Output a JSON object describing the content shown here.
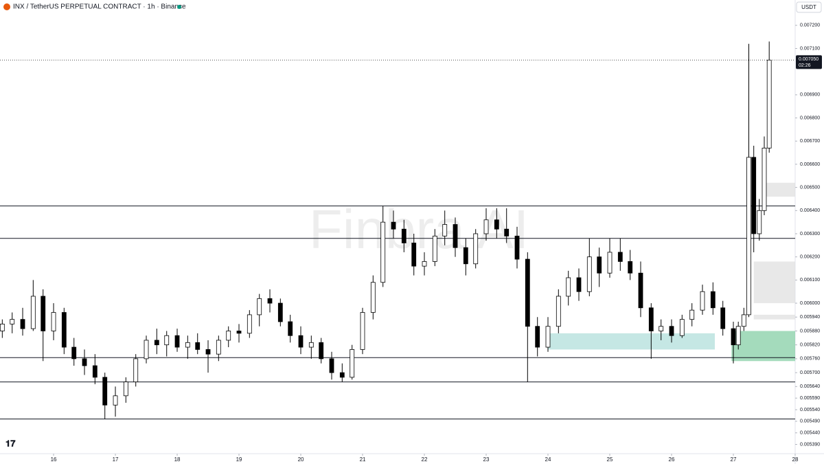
{
  "chart_data": {
    "type": "candlestick",
    "title": "INX / TetherUS PERPETUAL CONTRACT · 1h · Binance",
    "currency": "USDT",
    "watermark": "Finbra AI",
    "up_color": "#ffffff",
    "down_color": "#000000",
    "x": [
      15.17,
      15.33,
      15.5,
      15.67,
      15.83,
      16.0,
      16.17,
      16.33,
      16.5,
      16.67,
      16.83,
      17.0,
      17.17,
      17.33,
      17.5,
      17.67,
      17.83,
      18.0,
      18.17,
      18.33,
      18.5,
      18.67,
      18.83,
      19.0,
      19.17,
      19.33,
      19.5,
      19.67,
      19.83,
      20.0,
      20.17,
      20.33,
      20.5,
      20.67,
      20.83,
      21.0,
      21.17,
      21.33,
      21.5,
      21.67,
      21.83,
      22.0,
      22.17,
      22.33,
      22.5,
      22.67,
      22.83,
      23.0,
      23.17,
      23.33,
      23.5,
      23.67,
      23.83,
      24.0,
      24.17,
      24.33,
      24.5,
      24.67,
      24.83,
      25.0,
      25.17,
      25.33,
      25.5,
      25.67,
      25.83,
      26.0,
      26.17,
      26.33,
      26.5,
      26.67,
      26.83,
      27.0,
      27.08,
      27.17,
      27.25,
      27.33,
      27.42,
      27.5,
      27.58
    ],
    "open": [
      0.00588,
      0.00591,
      0.00593,
      0.00589,
      0.00603,
      0.00588,
      0.00596,
      0.00581,
      0.00576,
      0.00573,
      0.00568,
      0.00556,
      0.0056,
      0.00566,
      0.00576,
      0.00584,
      0.00582,
      0.00586,
      0.00581,
      0.00583,
      0.0058,
      0.00578,
      0.00584,
      0.00588,
      0.00587,
      0.00595,
      0.00602,
      0.006,
      0.00592,
      0.00586,
      0.00581,
      0.00583,
      0.00576,
      0.0057,
      0.00568,
      0.0058,
      0.00596,
      0.00609,
      0.00635,
      0.00632,
      0.00626,
      0.00616,
      0.00618,
      0.00629,
      0.00634,
      0.00624,
      0.00617,
      0.0063,
      0.00636,
      0.00632,
      0.00629,
      0.00619,
      0.0059,
      0.00581,
      0.0059,
      0.00603,
      0.00611,
      0.00605,
      0.0062,
      0.00613,
      0.00622,
      0.00618,
      0.00613,
      0.00598,
      0.00588,
      0.0059,
      0.00586,
      0.00593,
      0.00597,
      0.00605,
      0.00598,
      0.00589,
      0.00582,
      0.0059,
      0.00595,
      0.00663,
      0.0063,
      0.0064,
      0.00667
    ],
    "high": [
      0.00593,
      0.00596,
      0.00598,
      0.0061,
      0.00606,
      0.006,
      0.00598,
      0.00585,
      0.0058,
      0.00578,
      0.0057,
      0.00564,
      0.00568,
      0.00578,
      0.00586,
      0.00589,
      0.00588,
      0.00589,
      0.00586,
      0.00587,
      0.00584,
      0.00586,
      0.0059,
      0.00591,
      0.00597,
      0.00604,
      0.00606,
      0.00602,
      0.00595,
      0.0059,
      0.00586,
      0.00585,
      0.00579,
      0.00574,
      0.00582,
      0.00598,
      0.00612,
      0.00642,
      0.0064,
      0.00636,
      0.0063,
      0.00622,
      0.00632,
      0.0064,
      0.00637,
      0.00628,
      0.00632,
      0.00641,
      0.00641,
      0.00641,
      0.00633,
      0.00622,
      0.00594,
      0.00594,
      0.00606,
      0.00614,
      0.00615,
      0.00628,
      0.00624,
      0.00628,
      0.00628,
      0.00623,
      0.00618,
      0.006,
      0.00593,
      0.00593,
      0.00595,
      0.006,
      0.00608,
      0.00609,
      0.00601,
      0.00592,
      0.00592,
      0.00598,
      0.00712,
      0.00668,
      0.00645,
      0.00672,
      0.00713
    ],
    "low": [
      0.00585,
      0.00587,
      0.00586,
      0.00588,
      0.00575,
      0.00584,
      0.00578,
      0.00573,
      0.00569,
      0.00565,
      0.0055,
      0.00551,
      0.00557,
      0.00564,
      0.00574,
      0.00578,
      0.00577,
      0.00579,
      0.00576,
      0.00578,
      0.0057,
      0.00575,
      0.00581,
      0.00583,
      0.00585,
      0.0059,
      0.00596,
      0.0059,
      0.00583,
      0.00578,
      0.00576,
      0.00574,
      0.00567,
      0.00566,
      0.00567,
      0.00578,
      0.00593,
      0.00607,
      0.00628,
      0.00622,
      0.00612,
      0.00612,
      0.00616,
      0.00625,
      0.0062,
      0.00612,
      0.00615,
      0.00627,
      0.00628,
      0.00626,
      0.00615,
      0.00566,
      0.00577,
      0.00579,
      0.00587,
      0.00599,
      0.00601,
      0.00603,
      0.00607,
      0.00611,
      0.00614,
      0.0061,
      0.00594,
      0.00576,
      0.00584,
      0.00583,
      0.00585,
      0.0059,
      0.00595,
      0.00595,
      0.00586,
      0.00574,
      0.0058,
      0.00588,
      0.00594,
      0.00622,
      0.00627,
      0.00638,
      0.00665
    ],
    "close": [
      0.00591,
      0.00593,
      0.00589,
      0.00603,
      0.00588,
      0.00596,
      0.00581,
      0.00576,
      0.00573,
      0.00568,
      0.00556,
      0.0056,
      0.00566,
      0.00576,
      0.00584,
      0.00582,
      0.00586,
      0.00581,
      0.00583,
      0.0058,
      0.00578,
      0.00584,
      0.00588,
      0.00587,
      0.00595,
      0.00602,
      0.006,
      0.00592,
      0.00586,
      0.00581,
      0.00583,
      0.00576,
      0.0057,
      0.00568,
      0.0058,
      0.00596,
      0.00609,
      0.00635,
      0.00632,
      0.00626,
      0.00616,
      0.00618,
      0.00629,
      0.00634,
      0.00624,
      0.00617,
      0.0063,
      0.00636,
      0.00632,
      0.00629,
      0.00619,
      0.0059,
      0.00581,
      0.0059,
      0.00603,
      0.00611,
      0.00605,
      0.0062,
      0.00613,
      0.00622,
      0.00618,
      0.00613,
      0.00598,
      0.00588,
      0.0059,
      0.00586,
      0.00593,
      0.00597,
      0.00605,
      0.00598,
      0.00589,
      0.00582,
      0.0059,
      0.00595,
      0.00663,
      0.0063,
      0.0064,
      0.00667,
      0.00705
    ],
    "xlim": [
      15.133,
      28
    ],
    "xticks": [
      16,
      17,
      18,
      19,
      20,
      21,
      22,
      23,
      24,
      25,
      26,
      27,
      28
    ],
    "ylim": [
      0.00535,
      0.00725
    ],
    "yticks": [
      {
        "value": 0.0072,
        "label": "0.007200"
      },
      {
        "value": 0.0071,
        "label": "0.007100"
      },
      {
        "value": 0.0069,
        "label": "0.006900"
      },
      {
        "value": 0.0068,
        "label": "0.006800"
      },
      {
        "value": 0.0067,
        "label": "0.006700"
      },
      {
        "value": 0.0066,
        "label": "0.006600"
      },
      {
        "value": 0.0065,
        "label": "0.006500"
      },
      {
        "value": 0.0064,
        "label": "0.006400"
      },
      {
        "value": 0.0063,
        "label": "0.006300"
      },
      {
        "value": 0.0062,
        "label": "0.006200"
      },
      {
        "value": 0.0061,
        "label": "0.006100"
      },
      {
        "value": 0.006,
        "label": "0.006000"
      },
      {
        "value": 0.00594,
        "label": "0.005940"
      },
      {
        "value": 0.00588,
        "label": "0.005880"
      },
      {
        "value": 0.00582,
        "label": "0.005820"
      },
      {
        "value": 0.00576,
        "label": "0.005760"
      },
      {
        "value": 0.0057,
        "label": "0.005700"
      },
      {
        "value": 0.00564,
        "label": "0.005640"
      },
      {
        "value": 0.00559,
        "label": "0.005590"
      },
      {
        "value": 0.00554,
        "label": "0.005540"
      },
      {
        "value": 0.00549,
        "label": "0.005490"
      },
      {
        "value": 0.00544,
        "label": "0.005440"
      },
      {
        "value": 0.00539,
        "label": "0.005390"
      }
    ],
    "levels": [
      0.00642,
      0.00628,
      0.005765,
      0.00566,
      0.0055
    ],
    "zones": [
      {
        "x": [
          24.0,
          26.7
        ],
        "y": [
          0.0058,
          0.00587
        ],
        "color": "#b2dfdb"
      },
      {
        "x": [
          26.97,
          28
        ],
        "y": [
          0.00575,
          0.00588
        ],
        "color": "#86cfa6"
      },
      {
        "x": [
          27.5,
          28
        ],
        "y": [
          0.00646,
          0.00652
        ],
        "color": "#e0e0e0"
      },
      {
        "x": [
          27.33,
          28
        ],
        "y": [
          0.006,
          0.00618
        ],
        "color": "#e0e0e0"
      },
      {
        "x": [
          27.33,
          28
        ],
        "y": [
          0.00593,
          0.00595
        ],
        "color": "#e0e0e0"
      }
    ],
    "current_price": {
      "value": 0.00705,
      "label": "0.007050",
      "countdown": "02:26"
    }
  }
}
